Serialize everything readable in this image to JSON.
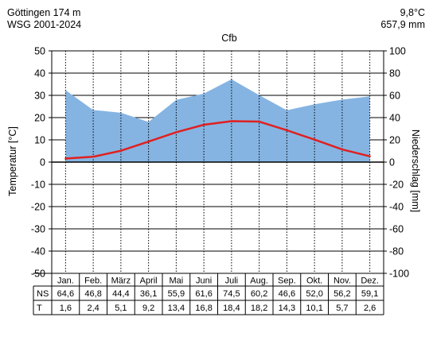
{
  "header": {
    "station": "Göttingen 174 m",
    "period": "WSG 2001-2024",
    "mean_temp": "9,8°C",
    "annual_precip": "657,9 mm",
    "climate_class": "Cfb"
  },
  "chart_data": {
    "type": "area",
    "categories": [
      "Jan.",
      "Feb.",
      "März",
      "April",
      "Mai",
      "Juni",
      "Juli",
      "Aug.",
      "Sep.",
      "Okt.",
      "Nov.",
      "Dez."
    ],
    "series": [
      {
        "name": "NS",
        "kind": "area",
        "axis": "right",
        "unit": "mm",
        "color": "#85b4e2",
        "values": [
          64.6,
          46.8,
          44.4,
          36.1,
          55.9,
          61.6,
          74.5,
          60.2,
          46.6,
          52.0,
          56.2,
          59.1
        ]
      },
      {
        "name": "T",
        "kind": "line",
        "axis": "left",
        "unit": "°C",
        "color": "#e02020",
        "values": [
          1.6,
          2.4,
          5.1,
          9.2,
          13.4,
          16.8,
          18.4,
          18.2,
          14.3,
          10.1,
          5.7,
          2.6
        ]
      }
    ],
    "ylabel_left": "Temperatur [°C]",
    "ylabel_right": "Niederschlag [mm]",
    "ylim_left": [
      -50,
      50
    ],
    "ylim_right": [
      -100,
      100
    ],
    "yticks_left": [
      "50",
      "40",
      "30",
      "20",
      "10",
      "0",
      "-10",
      "-20",
      "-30",
      "-40",
      "-50"
    ],
    "yticks_right": [
      "100",
      "80",
      "60",
      "40",
      "20",
      "0",
      "-20",
      "-40",
      "-60",
      "-80",
      "-100"
    ],
    "grid": true,
    "table": {
      "row_labels": [
        "NS",
        "T"
      ],
      "ns": [
        "64,6",
        "46,8",
        "44,4",
        "36,1",
        "55,9",
        "61,6",
        "74,5",
        "60,2",
        "46,6",
        "52,0",
        "56,2",
        "59,1"
      ],
      "t": [
        "1,6",
        "2,4",
        "5,1",
        "9,2",
        "13,4",
        "16,8",
        "18,4",
        "18,2",
        "14,3",
        "10,1",
        "5,7",
        "2,6"
      ]
    }
  }
}
